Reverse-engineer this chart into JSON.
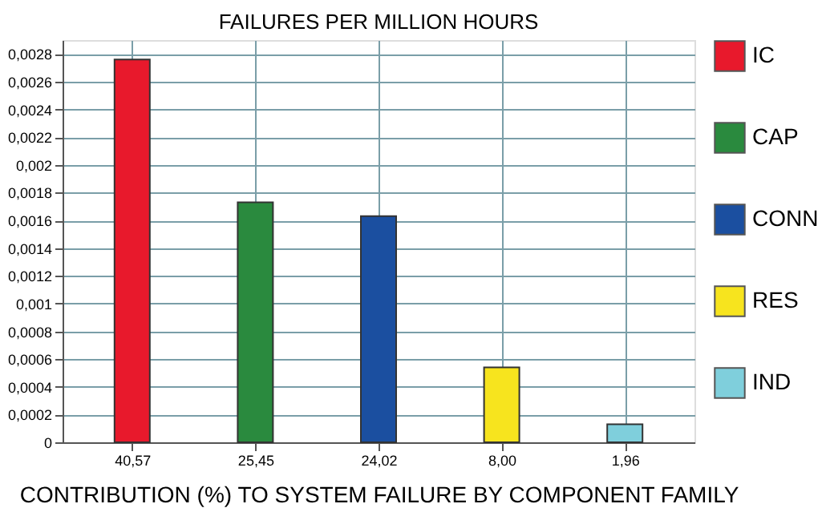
{
  "chart_data": {
    "type": "bar",
    "title": "FAILURES PER MILLION HOURS",
    "xlabel": "CONTRIBUTION (%) TO SYSTEM FAILURE BY COMPONENT FAMILY",
    "categories": [
      "40,57",
      "25,45",
      "24,02",
      "8,00",
      "1,96"
    ],
    "series": [
      {
        "name": "IC",
        "color": "#e8192c",
        "values": [
          0.00276,
          null,
          null,
          null,
          null
        ]
      },
      {
        "name": "CAP",
        "color": "#2a8a3e",
        "values": [
          null,
          0.00173,
          null,
          null,
          null
        ]
      },
      {
        "name": "CONN",
        "color": "#1b4fa0",
        "values": [
          null,
          null,
          0.00163,
          null,
          null
        ]
      },
      {
        "name": "RES",
        "color": "#f7e41e",
        "values": [
          null,
          null,
          null,
          0.00054,
          null
        ]
      },
      {
        "name": "IND",
        "color": "#7fcfdc",
        "values": [
          null,
          null,
          null,
          null,
          0.00013
        ]
      }
    ],
    "ylim": [
      0,
      0.0029
    ],
    "yticks": [
      0,
      {
        "value": 0.0002,
        "label": "0,0002"
      },
      {
        "value": 0.0004,
        "label": "0,0004"
      },
      {
        "value": 0.0006,
        "label": "0,0006"
      },
      {
        "value": 0.0008,
        "label": "0,0008"
      },
      {
        "value": 0.001,
        "label": "0,001"
      },
      {
        "value": 0.0012,
        "label": "0,0012"
      },
      {
        "value": 0.0014,
        "label": "0,0014"
      },
      {
        "value": 0.0016,
        "label": "0,0016"
      },
      {
        "value": 0.0018,
        "label": "0,0018"
      },
      {
        "value": 0.002,
        "label": "0,002"
      },
      {
        "value": 0.0022,
        "label": "0,0022"
      },
      {
        "value": 0.0024,
        "label": "0,0024"
      },
      {
        "value": 0.0026,
        "label": "0,0026"
      },
      {
        "value": 0.0028,
        "label": "0,0028"
      }
    ],
    "grid": true,
    "legend": "right"
  }
}
